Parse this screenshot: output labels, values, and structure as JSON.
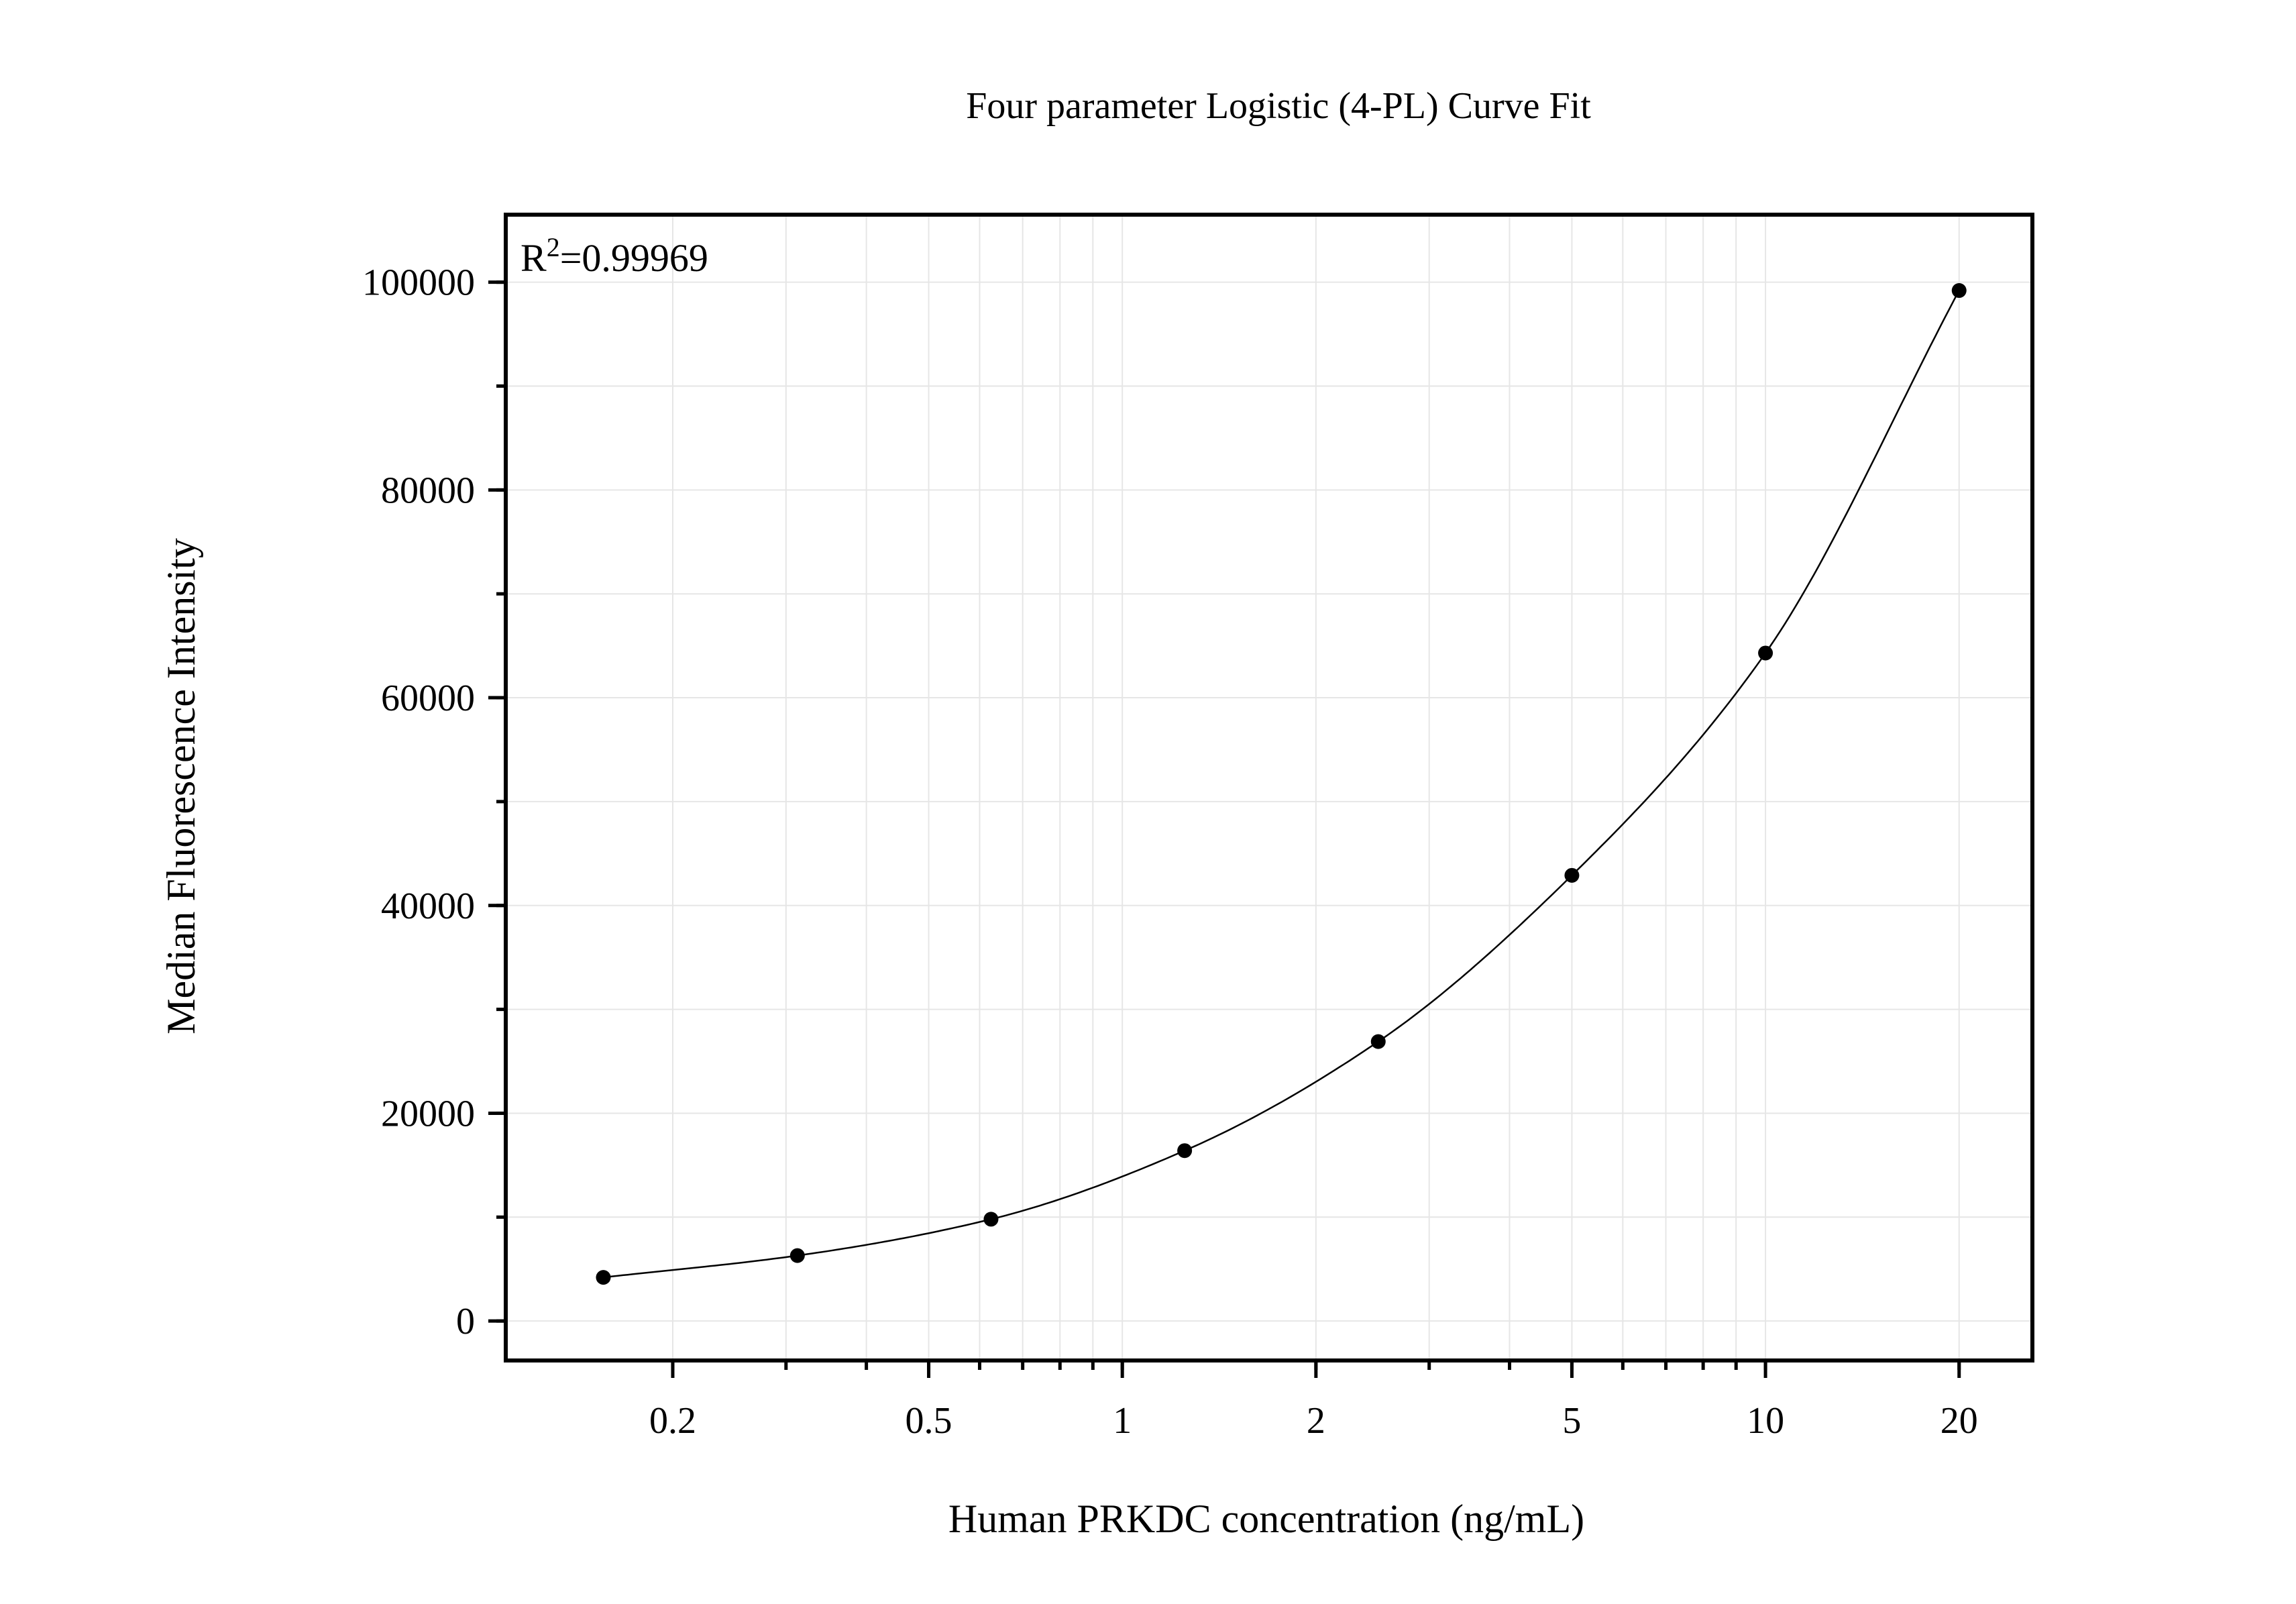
{
  "chart_data": {
    "type": "scatter",
    "title": "Four parameter Logistic (4-PL) Curve Fit",
    "xlabel": "Human PRKDC concentration (ng/mL)",
    "ylabel": "Median Fluorescence Intensity",
    "x_scale": "log",
    "xlim": [
      0.11,
      26
    ],
    "ylim": [
      -3800,
      106500
    ],
    "x_ticks": [
      0.2,
      0.5,
      1,
      2,
      5,
      10,
      20
    ],
    "x_tick_labels": [
      "0.2",
      "0.5",
      "1",
      "2",
      "5",
      "10",
      "20"
    ],
    "y_ticks": [
      0,
      20000,
      40000,
      60000,
      80000,
      100000
    ],
    "y_tick_labels": [
      "0",
      "20000",
      "40000",
      "60000",
      "80000",
      "100000"
    ],
    "annotation": {
      "prefix": "R",
      "superscript": "2",
      "value": "=0.99969",
      "position": "top-left"
    },
    "grid": true,
    "points": [
      {
        "x": 0.156,
        "y": 4200
      },
      {
        "x": 0.3125,
        "y": 6300
      },
      {
        "x": 0.625,
        "y": 9800
      },
      {
        "x": 1.25,
        "y": 16400
      },
      {
        "x": 2.5,
        "y": 26900
      },
      {
        "x": 5,
        "y": 42900
      },
      {
        "x": 10,
        "y": 64300
      },
      {
        "x": 20,
        "y": 99200
      }
    ],
    "fit": {
      "model": "4PL",
      "x_range": [
        0.156,
        20
      ]
    }
  }
}
